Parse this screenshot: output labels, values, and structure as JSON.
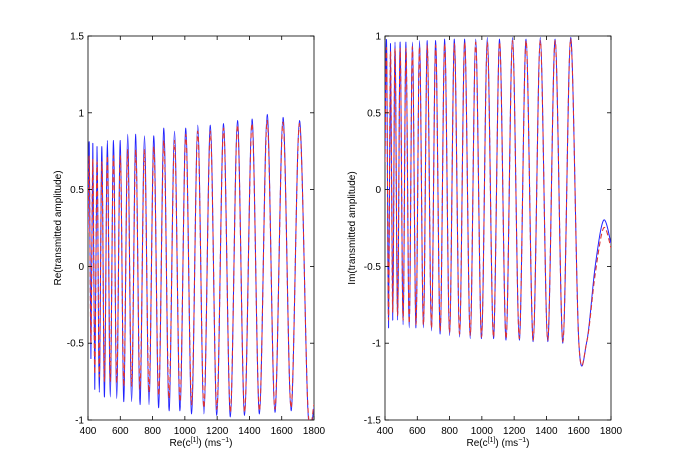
{
  "chart_data": [
    {
      "type": "line",
      "xlabel": "Re(c",
      "xlabel_sup": "[1]",
      "xlabel_units": ") (ms",
      "xlabel_units_sup": "−1",
      "xlabel_end": ")",
      "ylabel": "Re(transmitted amplitude)",
      "xlim": [
        400,
        1800
      ],
      "ylim": [
        -1,
        1.5
      ],
      "xticks": [
        "400",
        "600",
        "800",
        "1000",
        "1200",
        "1400",
        "1600",
        "1800"
      ],
      "yticks": [
        "-1",
        "-0.5",
        "0",
        "0.5",
        "1",
        "1.5"
      ],
      "grid": false,
      "legend": "none",
      "series": [
        {
          "style": "solid",
          "color": "#2222ff",
          "x": [
            400,
            408,
            418,
            430,
            442,
            456,
            470,
            486,
            502,
            520,
            538,
            558,
            578,
            600,
            622,
            646,
            670,
            696,
            722,
            750,
            778,
            808,
            838,
            870,
            902,
            936,
            970,
            1006,
            1042,
            1080,
            1118,
            1158,
            1198,
            1240,
            1282,
            1326,
            1370,
            1416,
            1462,
            1510,
            1558,
            1608,
            1658,
            1710,
            1762,
            1800
          ],
          "y": [
            0.25,
            0.79,
            -0.6,
            0.8,
            -0.8,
            0.78,
            -0.82,
            0.78,
            -0.85,
            0.82,
            -0.85,
            0.82,
            -0.86,
            0.82,
            -0.88,
            0.86,
            -0.88,
            0.86,
            -0.9,
            0.85,
            -0.9,
            0.85,
            -0.92,
            0.9,
            -0.94,
            0.88,
            -0.94,
            0.9,
            -0.96,
            0.92,
            -0.96,
            0.92,
            -0.97,
            0.93,
            -0.98,
            0.95,
            -0.97,
            0.96,
            -0.96,
            0.99,
            -0.95,
            0.97,
            -0.94,
            0.95,
            -0.93,
            -0.92
          ]
        },
        {
          "style": "dashed",
          "color": "#dd3333",
          "x": [
            400,
            408,
            418,
            430,
            442,
            456,
            470,
            486,
            502,
            520,
            538,
            558,
            578,
            600,
            622,
            646,
            670,
            696,
            722,
            750,
            778,
            808,
            838,
            870,
            902,
            936,
            970,
            1006,
            1042,
            1080,
            1118,
            1158,
            1198,
            1240,
            1282,
            1326,
            1370,
            1416,
            1462,
            1510,
            1558,
            1608,
            1658,
            1710,
            1762,
            1800
          ],
          "y": [
            0.22,
            0.7,
            -0.5,
            0.7,
            -0.7,
            0.68,
            -0.72,
            0.68,
            -0.75,
            0.72,
            -0.75,
            0.72,
            -0.76,
            0.72,
            -0.78,
            0.76,
            -0.78,
            0.76,
            -0.8,
            0.76,
            -0.82,
            0.78,
            -0.84,
            0.82,
            -0.86,
            0.82,
            -0.88,
            0.86,
            -0.9,
            0.88,
            -0.92,
            0.88,
            -0.93,
            0.9,
            -0.95,
            0.92,
            -0.95,
            0.93,
            -0.94,
            0.95,
            -0.93,
            0.94,
            -0.92,
            0.93,
            -0.91,
            -0.9
          ]
        }
      ]
    },
    {
      "type": "line",
      "xlabel": "Re(c",
      "xlabel_sup": "[1]",
      "xlabel_units": ") (ms",
      "xlabel_units_sup": "−1",
      "xlabel_end": ")",
      "ylabel": "Im(transmitted amplitude)",
      "xlim": [
        400,
        1800
      ],
      "ylim": [
        -1.5,
        1
      ],
      "xticks": [
        "400",
        "600",
        "800",
        "1000",
        "1200",
        "1400",
        "1600",
        "1800"
      ],
      "yticks": [
        "-1.5",
        "-1",
        "-0.5",
        "0",
        "0.5",
        "1"
      ],
      "grid": false,
      "legend": "none",
      "series": [
        {
          "style": "solid",
          "color": "#2222ff",
          "x": [
            400,
            410,
            422,
            434,
            448,
            462,
            478,
            494,
            512,
            530,
            550,
            570,
            592,
            614,
            638,
            662,
            688,
            714,
            742,
            770,
            800,
            830,
            862,
            894,
            928,
            962,
            998,
            1034,
            1072,
            1110,
            1150,
            1190,
            1232,
            1274,
            1318,
            1362,
            1408,
            1454,
            1502,
            1550,
            1600,
            1650,
            1702,
            1754,
            1800
          ],
          "y": [
            0.2,
            0.95,
            -0.9,
            0.95,
            -0.85,
            0.96,
            -0.85,
            0.96,
            -0.88,
            0.96,
            -0.9,
            0.96,
            -0.9,
            0.97,
            -0.9,
            0.97,
            -0.92,
            0.97,
            -0.94,
            0.98,
            -0.95,
            0.98,
            -0.96,
            0.98,
            -0.97,
            0.98,
            -0.97,
            0.99,
            -0.97,
            0.98,
            -0.98,
            0.99,
            -0.98,
            0.98,
            -0.99,
            0.99,
            -0.99,
            0.98,
            -1.0,
            0.99,
            -0.98,
            -0.99,
            -0.5,
            -0.2,
            -0.35
          ]
        },
        {
          "style": "dashed",
          "color": "#dd3333",
          "x": [
            400,
            410,
            422,
            434,
            448,
            462,
            478,
            494,
            512,
            530,
            550,
            570,
            592,
            614,
            638,
            662,
            688,
            714,
            742,
            770,
            800,
            830,
            862,
            894,
            928,
            962,
            998,
            1034,
            1072,
            1110,
            1150,
            1190,
            1232,
            1274,
            1318,
            1362,
            1408,
            1454,
            1502,
            1550,
            1600,
            1650,
            1702,
            1754,
            1800
          ],
          "y": [
            0.18,
            0.9,
            -0.85,
            0.9,
            -0.8,
            0.92,
            -0.82,
            0.92,
            -0.85,
            0.92,
            -0.87,
            0.93,
            -0.88,
            0.93,
            -0.88,
            0.94,
            -0.9,
            0.94,
            -0.92,
            0.95,
            -0.93,
            0.95,
            -0.94,
            0.96,
            -0.95,
            0.96,
            -0.96,
            0.96,
            -0.96,
            0.96,
            -0.97,
            0.97,
            -0.97,
            0.97,
            -0.98,
            0.97,
            -0.98,
            0.97,
            -0.99,
            0.98,
            -0.98,
            -0.99,
            -0.55,
            -0.25,
            -0.38
          ]
        }
      ]
    }
  ]
}
